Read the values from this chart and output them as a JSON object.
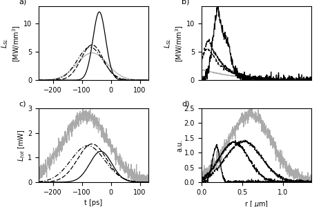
{
  "subplot_labels": [
    "a)",
    "b)",
    "c)",
    "d)"
  ],
  "panel_a": {
    "ylabel": "$L_{SL}$ [MW/mm$^3$]",
    "xlim": [
      -250,
      130
    ],
    "ylim": [
      0,
      13
    ],
    "yticks": [
      0,
      5,
      10
    ],
    "xticks": [
      -200,
      -100,
      0,
      100
    ]
  },
  "panel_b": {
    "ylabel": "$L_{SL}$ [MW/mm$^3$]",
    "xlim": [
      0,
      0.42
    ],
    "ylim": [
      0,
      13
    ],
    "yticks": [
      0,
      5,
      10
    ]
  },
  "panel_c": {
    "ylabel": "$L_{tot}$ [mW]",
    "xlabel": "t [ps]",
    "xlim": [
      -250,
      130
    ],
    "ylim": [
      0,
      3
    ],
    "yticks": [
      0,
      1,
      2,
      3
    ],
    "xticks": [
      -200,
      -100,
      0,
      100
    ]
  },
  "panel_d": {
    "ylabel": "a.u.",
    "xlabel": "r [ $\\mu$m]",
    "xlim": [
      0,
      1.35
    ],
    "ylim": [
      0,
      2.5
    ],
    "yticks": [
      0,
      0.5,
      1.0,
      1.5,
      2.0,
      2.5
    ],
    "xticks": [
      0,
      0.5,
      1.0
    ]
  },
  "gray_color": "#aaaaaa",
  "black_color": "#000000",
  "lw": 0.9
}
